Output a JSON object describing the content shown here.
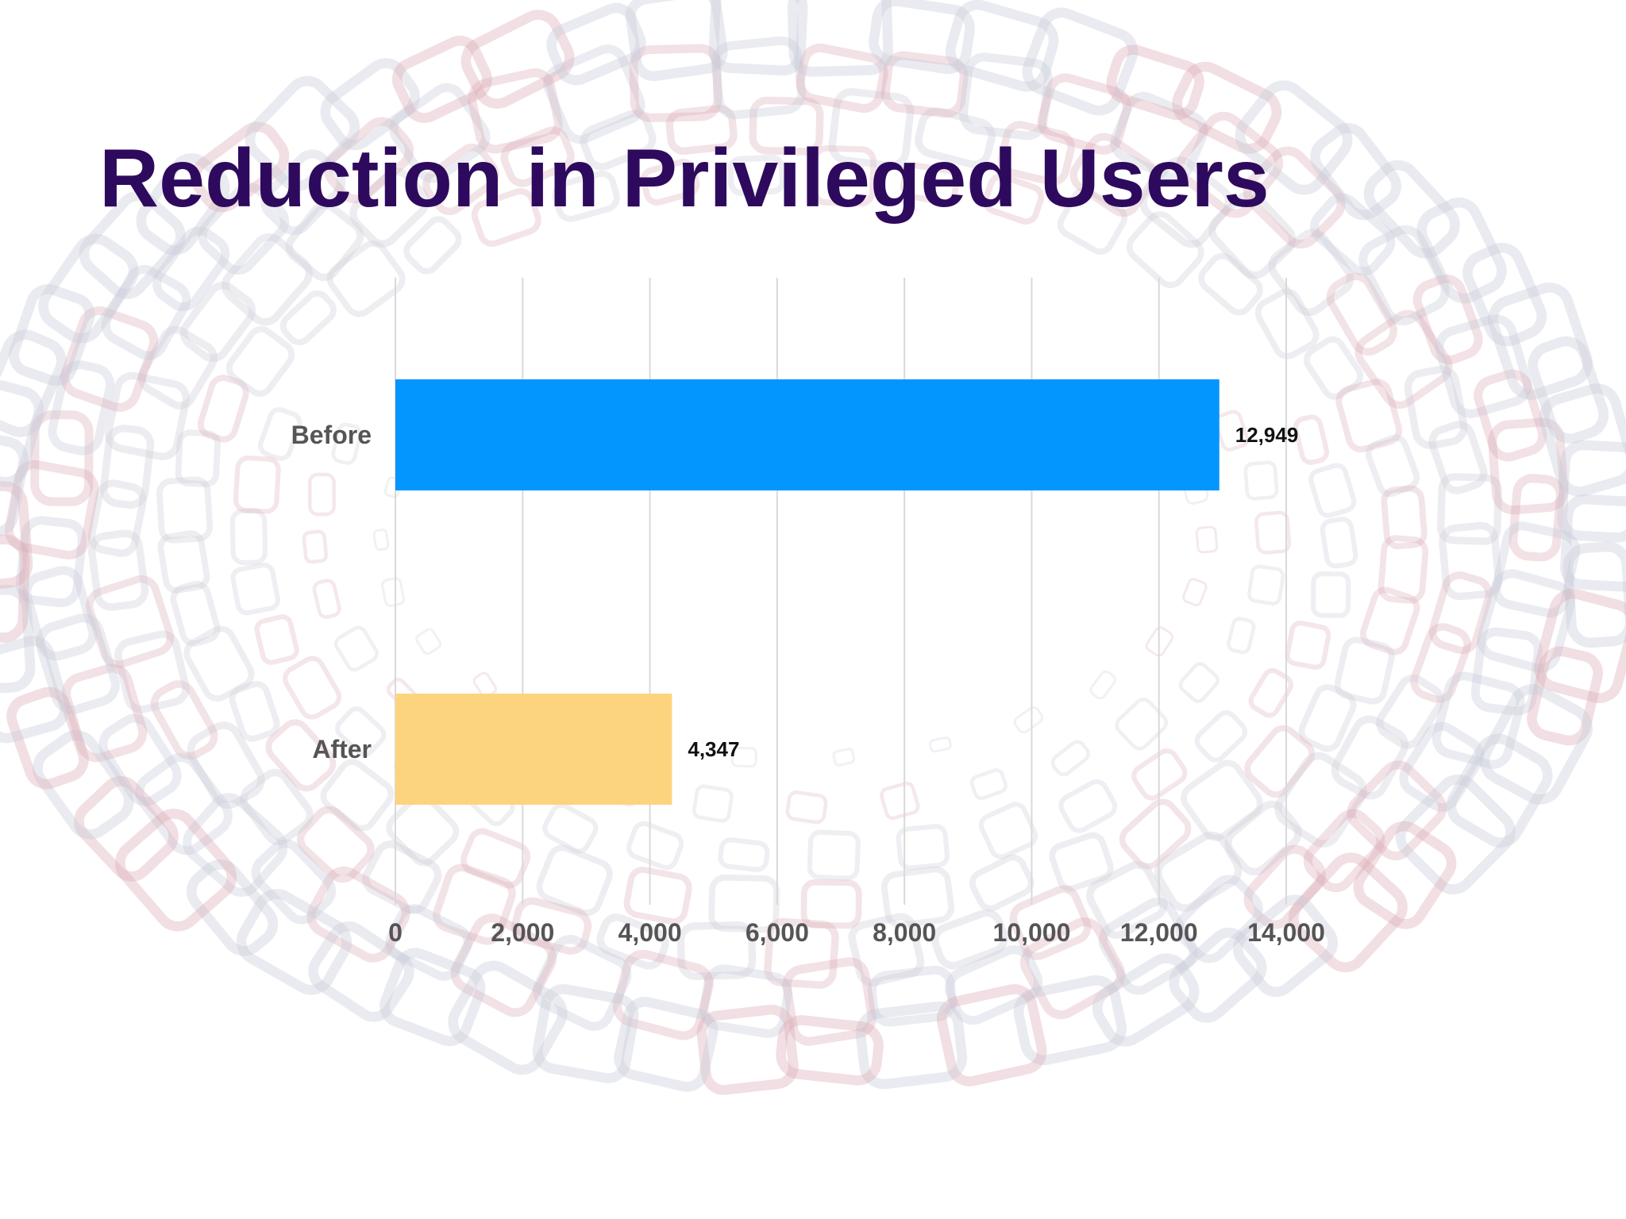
{
  "slide": {
    "title": "Reduction in Privileged Users"
  },
  "colors": {
    "title": "#2e0a5e",
    "before_bar": "#0496ff",
    "after_bar": "#fdd47e",
    "gridline": "#d9d9d9",
    "label": "#555555",
    "decoration_gray": "#c7c9d6",
    "decoration_red": "#d9a9b4"
  },
  "chart_data": {
    "type": "bar",
    "orientation": "horizontal",
    "categories": [
      "Before",
      "After"
    ],
    "values": [
      12949,
      4347
    ],
    "value_labels": [
      "12,949",
      "4,347"
    ],
    "bar_colors": [
      "#0496ff",
      "#fdd47e"
    ],
    "xlim": [
      0,
      14000
    ],
    "x_ticks": [
      0,
      2000,
      4000,
      6000,
      8000,
      10000,
      12000,
      14000
    ],
    "x_tick_labels": [
      "0",
      "2,000",
      "4,000",
      "6,000",
      "8,000",
      "10,000",
      "12,000",
      "14,000"
    ],
    "grid": true,
    "legend": "none"
  }
}
